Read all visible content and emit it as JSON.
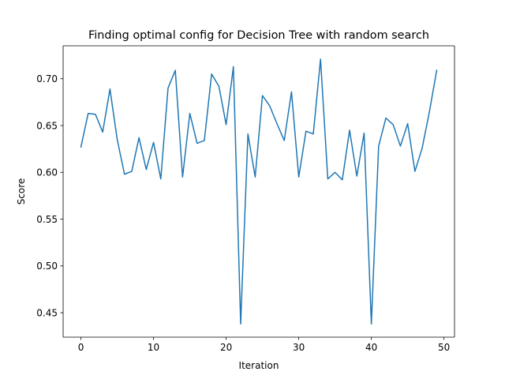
{
  "chart_data": {
    "type": "line",
    "title": "Finding optimal config for Decision Tree with random search",
    "xlabel": "Iteration",
    "ylabel": "Score",
    "xlim": [
      -2.45,
      51.45
    ],
    "ylim": [
      0.4239,
      0.7352
    ],
    "xticks": [
      0,
      10,
      20,
      30,
      40,
      50
    ],
    "xtick_labels": [
      "0",
      "10",
      "20",
      "30",
      "40",
      "50"
    ],
    "yticks": [
      0.45,
      0.5,
      0.55,
      0.6,
      0.65,
      0.7
    ],
    "ytick_labels": [
      "0.45",
      "0.50",
      "0.55",
      "0.60",
      "0.65",
      "0.70"
    ],
    "grid": false,
    "line_color": "#1f77b4",
    "x": [
      0,
      1,
      2,
      3,
      4,
      5,
      6,
      7,
      8,
      9,
      10,
      11,
      12,
      13,
      14,
      15,
      16,
      17,
      18,
      19,
      20,
      21,
      22,
      23,
      24,
      25,
      26,
      27,
      28,
      29,
      30,
      31,
      32,
      33,
      34,
      35,
      36,
      37,
      38,
      39,
      40,
      41,
      42,
      43,
      44,
      45,
      46,
      47,
      48,
      49
    ],
    "y": [
      0.627,
      0.663,
      0.662,
      0.643,
      0.689,
      0.635,
      0.598,
      0.601,
      0.637,
      0.603,
      0.632,
      0.593,
      0.69,
      0.709,
      0.595,
      0.663,
      0.631,
      0.634,
      0.705,
      0.692,
      0.651,
      0.713,
      0.438,
      0.641,
      0.595,
      0.682,
      0.671,
      0.652,
      0.634,
      0.686,
      0.595,
      0.644,
      0.641,
      0.721,
      0.593,
      0.6,
      0.592,
      0.645,
      0.596,
      0.642,
      0.438,
      0.628,
      0.658,
      0.651,
      0.628,
      0.652,
      0.601,
      0.626,
      0.665,
      0.709
    ]
  }
}
